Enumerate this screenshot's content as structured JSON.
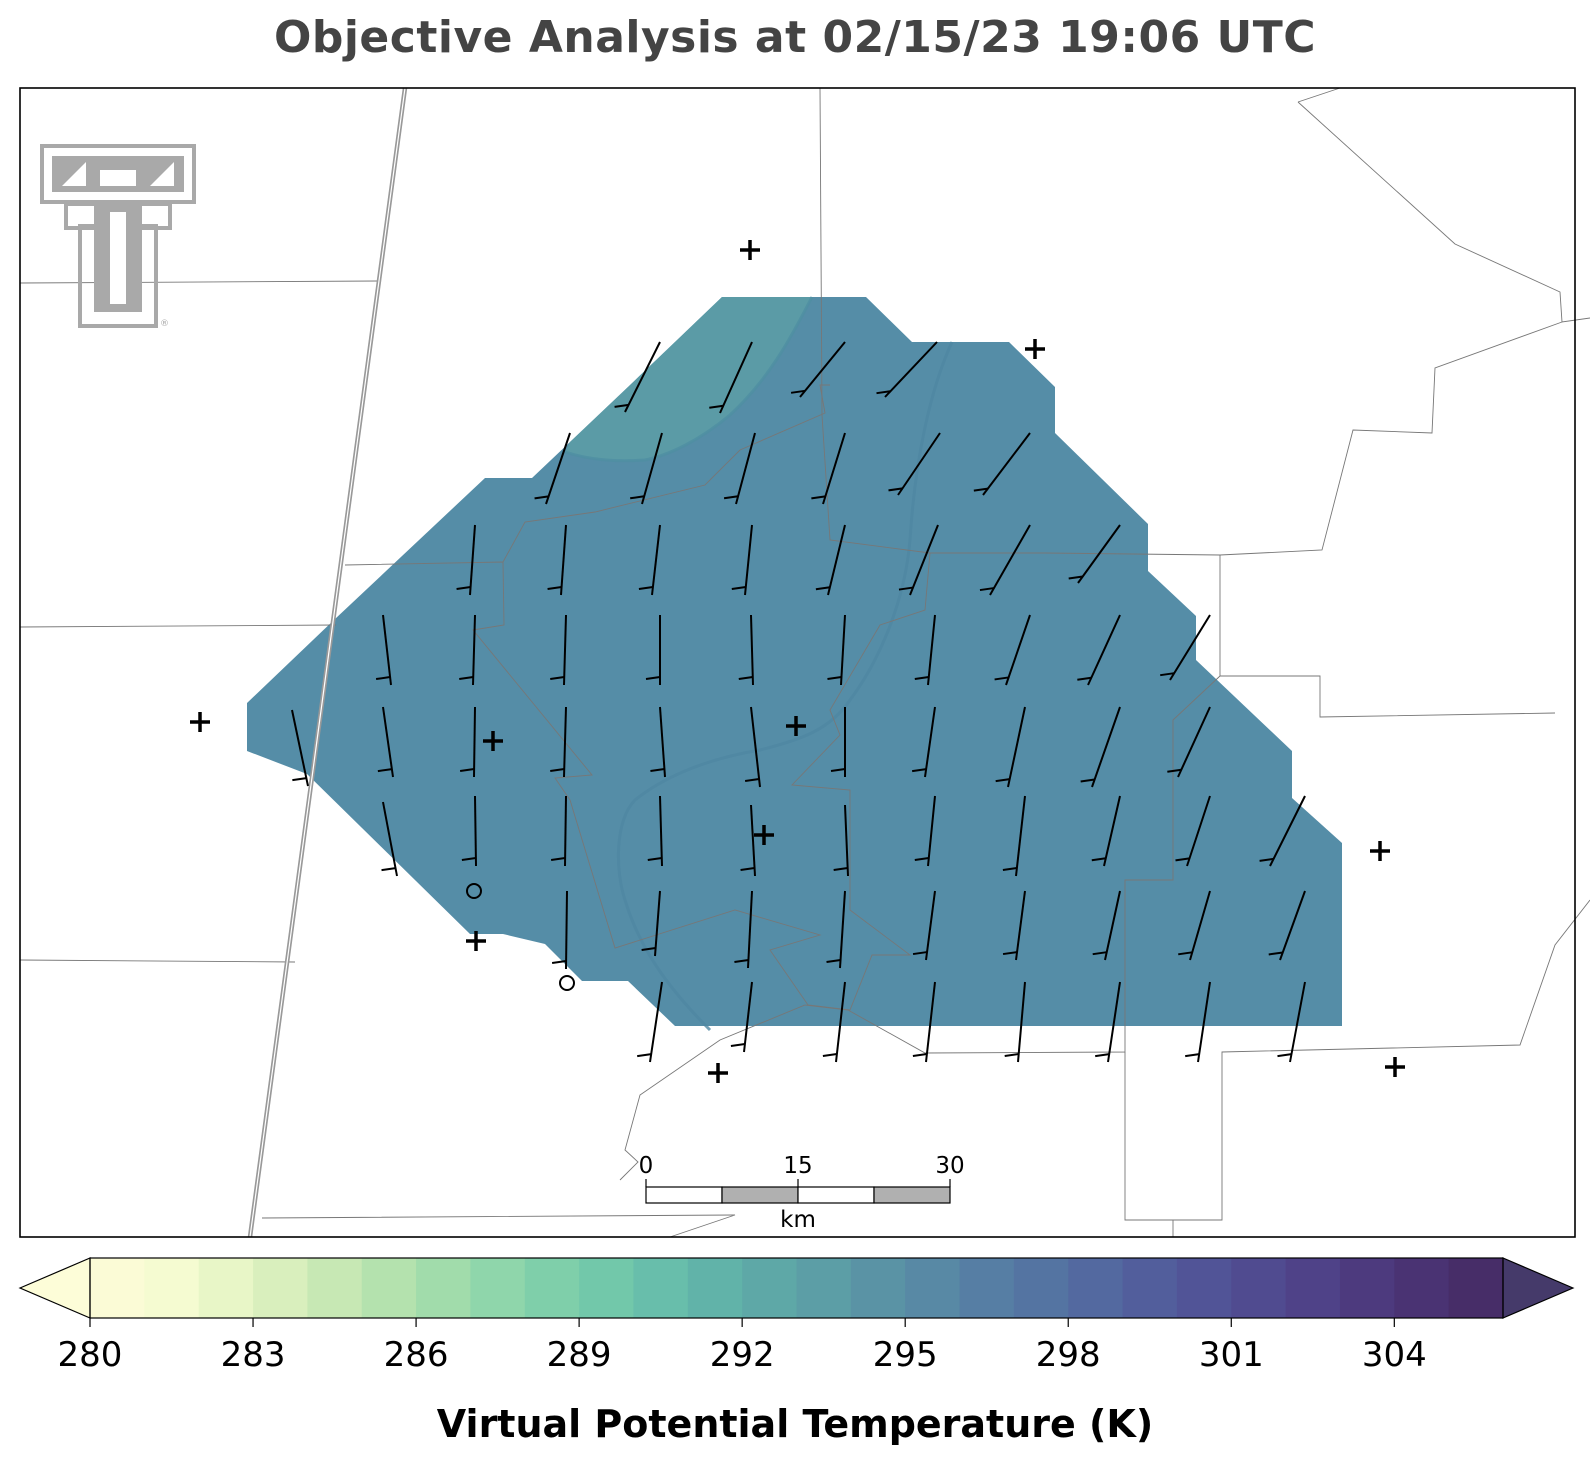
{
  "title": "Objective Analysis at 02/15/23 19:06 UTC",
  "analysis_field": "Virtual Potential Temperature (K)",
  "logo_text": "TT",
  "fill_color": "#558da7",
  "fill_color_northwest": "#5b9ba6",
  "scalebar": {
    "tick_labels": [
      "0",
      "15",
      "30"
    ],
    "unit": "km"
  },
  "colorbar": {
    "min": 280,
    "max": 306,
    "step": 1,
    "extend": "both",
    "tick_labels": [
      "280",
      "283",
      "286",
      "289",
      "292",
      "295",
      "298",
      "301",
      "304"
    ],
    "colors": [
      "#fbfbd6",
      "#f5fbd1",
      "#e8f6c7",
      "#d9efbd",
      "#c7e8b4",
      "#b4e2ae",
      "#a1dcab",
      "#8fd6ab",
      "#7fcfaa",
      "#72c8aa",
      "#68beab",
      "#61b3a9",
      "#5ea8a7",
      "#5c9ea6",
      "#5a93a5",
      "#5889a5",
      "#567ea4",
      "#5474a2",
      "#5369a0",
      "#525e9c",
      "#515497",
      "#504b90",
      "#4f4288",
      "#4d3a7e",
      "#4a3373",
      "#472d68"
    ],
    "under_color": "#fdfdd8",
    "over_color": "#453a6a"
  },
  "stations": {
    "plus_count": 11,
    "circle_count": 2
  }
}
